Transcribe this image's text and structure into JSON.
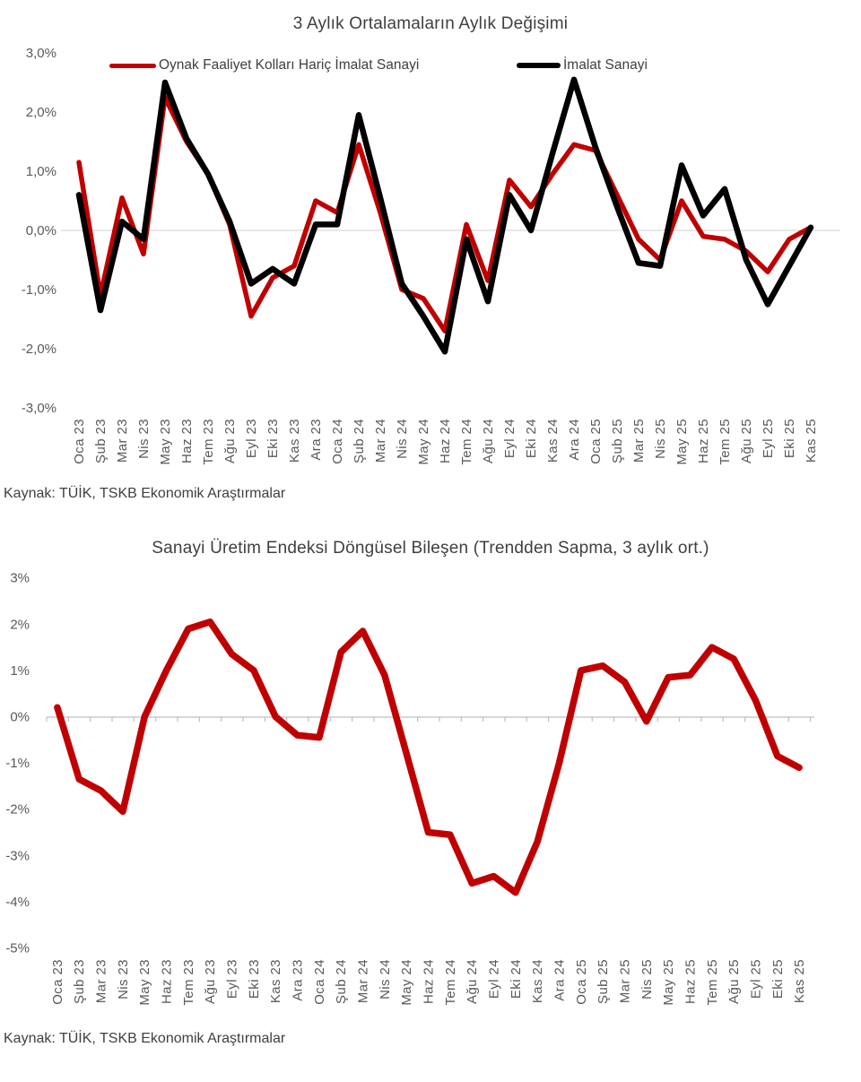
{
  "chart_data": [
    {
      "type": "line",
      "title": "3 Aylık Ortalamaların Aylık Değişimi",
      "source": "Kaynak: TÜİK, TSKB Ekonomik Araştırmalar",
      "legend_position": "top",
      "grid": "zero-line-only",
      "ylim": [
        -3.0,
        3.0
      ],
      "y_axis": {
        "tick_values": [
          3,
          2,
          1,
          0,
          -1,
          -2,
          -3
        ],
        "tick_labels": [
          "3,0%",
          "2,0%",
          "1,0%",
          "0,0%",
          "-1,0%",
          "-2,0%",
          "-3,0%"
        ]
      },
      "categories": [
        "Oca 23",
        "Şub 23",
        "Mar 23",
        "Nis 23",
        "May 23",
        "Haz 23",
        "Tem 23",
        "Ağu 23",
        "Eyl 23",
        "Eki 23",
        "Kas 23",
        "Ara 23",
        "Oca 24",
        "Şub 24",
        "Mar 24",
        "Nis 24",
        "May 24",
        "Haz 24",
        "Tem 24",
        "Ağu 24",
        "Eyl 24",
        "Eki 24",
        "Kas 24",
        "Ara 24",
        "Oca 25",
        "Şub 25",
        "Mar 25",
        "Nis 25",
        "May 25",
        "Haz 25",
        "Tem 25",
        "Ağu 25",
        "Eyl 25",
        "Eki 25",
        "Kas 25"
      ],
      "series": [
        {
          "name": "Oynak Faaliyet Kolları Hariç İmalat Sanayi",
          "color": "#C00000",
          "values": [
            1.15,
            -1.1,
            0.55,
            -0.4,
            2.25,
            1.5,
            0.95,
            0.1,
            -1.45,
            -0.8,
            -0.6,
            0.5,
            0.3,
            1.45,
            0.3,
            -1.0,
            -1.15,
            -1.7,
            0.1,
            -0.85,
            0.85,
            0.4,
            0.95,
            1.45,
            1.35,
            0.6,
            -0.15,
            -0.5,
            0.5,
            -0.1,
            -0.15,
            -0.35,
            -0.7,
            -0.15,
            0.05
          ]
        },
        {
          "name": "İmalat Sanayi",
          "color": "#000000",
          "values": [
            0.6,
            -1.35,
            0.15,
            -0.15,
            2.5,
            1.55,
            0.95,
            0.15,
            -0.9,
            -0.65,
            -0.9,
            0.1,
            0.1,
            1.95,
            0.55,
            -0.9,
            -1.45,
            -2.05,
            -0.15,
            -1.2,
            0.6,
            0.0,
            1.3,
            2.55,
            1.4,
            0.4,
            -0.55,
            -0.6,
            1.1,
            0.25,
            0.7,
            -0.5,
            -1.25,
            -0.6,
            0.05
          ]
        }
      ]
    },
    {
      "type": "line",
      "title": "Sanayi Üretim Endeksi Döngüsel Bileşen (Trendden Sapma, 3 aylık ort.)",
      "source": "Kaynak: TÜİK, TSKB Ekonomik Araştırmalar",
      "legend_position": "none",
      "grid": "zero-axis-with-ticks",
      "ylim": [
        -5,
        3
      ],
      "y_axis": {
        "tick_values": [
          3,
          2,
          1,
          0,
          -1,
          -2,
          -3,
          -4,
          -5
        ],
        "tick_labels": [
          "3%",
          "2%",
          "1%",
          "0%",
          "-1%",
          "-2%",
          "-3%",
          "-4%",
          "-5%"
        ]
      },
      "categories": [
        "Oca 23",
        "Şub 23",
        "Mar 23",
        "Nis 23",
        "May 23",
        "Haz 23",
        "Tem 23",
        "Ağu 23",
        "Eyl 23",
        "Eki 23",
        "Kas 23",
        "Ara 23",
        "Oca 24",
        "Şub 24",
        "Mar 24",
        "Nis 24",
        "May 24",
        "Haz 24",
        "Tem 24",
        "Ağu 24",
        "Eyl 24",
        "Eki 24",
        "Kas 24",
        "Ara 24",
        "Oca 25",
        "Şub 25",
        "Mar 25",
        "Nis 25",
        "May 25",
        "Haz 25",
        "Tem 25",
        "Ağu 25",
        "Eyl 25",
        "Eki 25",
        "Kas 25"
      ],
      "series": [
        {
          "name": "Sanayi Üretim Endeksi Döngüsel Bileşen",
          "color": "#C00000",
          "values": [
            0.2,
            -1.35,
            -1.6,
            -2.05,
            0.0,
            1.0,
            1.9,
            2.05,
            1.35,
            1.0,
            0.0,
            -0.4,
            -0.45,
            1.4,
            1.85,
            0.9,
            -0.8,
            -2.5,
            -2.55,
            -3.6,
            -3.45,
            -3.8,
            -2.7,
            -1.0,
            1.0,
            1.1,
            0.75,
            -0.1,
            0.85,
            0.9,
            1.5,
            1.25,
            0.35,
            -0.85,
            -1.1
          ]
        }
      ]
    }
  ]
}
